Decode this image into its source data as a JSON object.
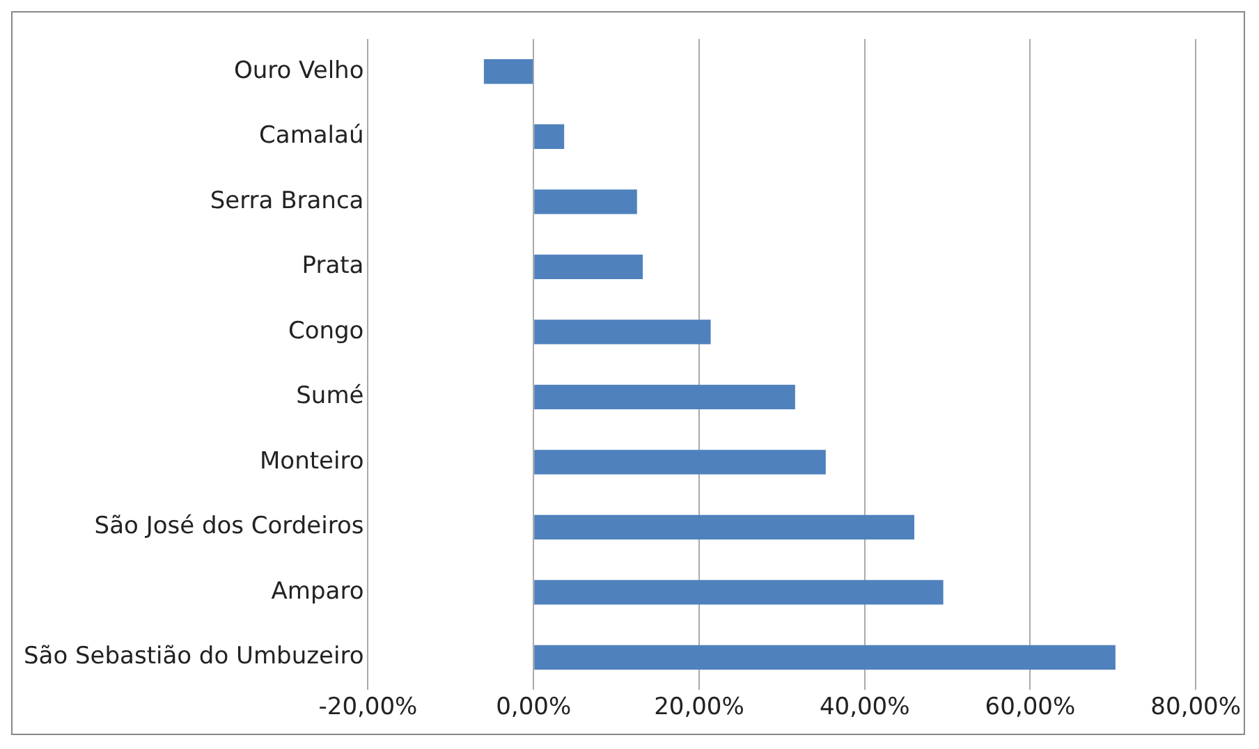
{
  "chart_data": {
    "type": "bar",
    "orientation": "horizontal",
    "categories": [
      "Ouro Velho",
      "Camalaú",
      "Serra Branca",
      "Prata",
      "Congo",
      "Sumé",
      "Monteiro",
      "São José dos Cordeiros",
      "Amparo",
      "São Sebastião do Umbuzeiro"
    ],
    "values": [
      -6,
      3.7,
      12.5,
      13.2,
      21.4,
      31.6,
      35.3,
      46,
      49.5,
      70.3
    ],
    "color": "#4f81bd",
    "xlim": [
      -20,
      80
    ],
    "xticks": [
      {
        "value": -20,
        "label": "-20,00%"
      },
      {
        "value": 0,
        "label": "0,00%"
      },
      {
        "value": 20,
        "label": "20,00%"
      },
      {
        "value": 40,
        "label": "40,00%"
      },
      {
        "value": 60,
        "label": "60,00%"
      },
      {
        "value": 80,
        "label": "80,00%"
      }
    ],
    "grid": "x"
  }
}
